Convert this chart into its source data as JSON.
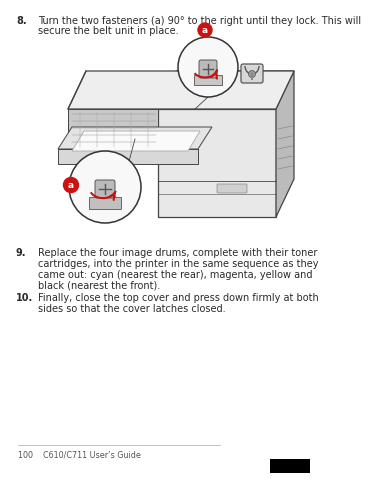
{
  "bg_color": "#ffffff",
  "text_color": "#2a2a2a",
  "step8_num": "8.",
  "step8_text_line1": "Turn the two fasteners (a) 90° to the right until they lock. This will",
  "step8_text_line2": "secure the belt unit in place.",
  "step9_num": "9.",
  "step9_text_line1": "Replace the four image drums, complete with their toner",
  "step9_text_line2": "cartridges, into the printer in the same sequence as they",
  "step9_text_line3": "came out: cyan (nearest the rear), magenta, yellow and",
  "step9_text_line4": "black (nearest the front).",
  "step10_num": "10.",
  "step10_text_line1": "Finally, close the top cover and press down firmly at both",
  "step10_text_line2": "sides so that the cover latches closed.",
  "footer_text": "100    C610/C711 User’s Guide",
  "label_a_color": "#cc1111",
  "edge_color": "#444444",
  "printer_fill": "#e8e8e8",
  "printer_dark": "#bbbbbb",
  "printer_light": "#f2f2f2",
  "zoom_bg": "#f8f8f8",
  "font_size": 7.0,
  "num_indent": 6,
  "text_indent": 28
}
